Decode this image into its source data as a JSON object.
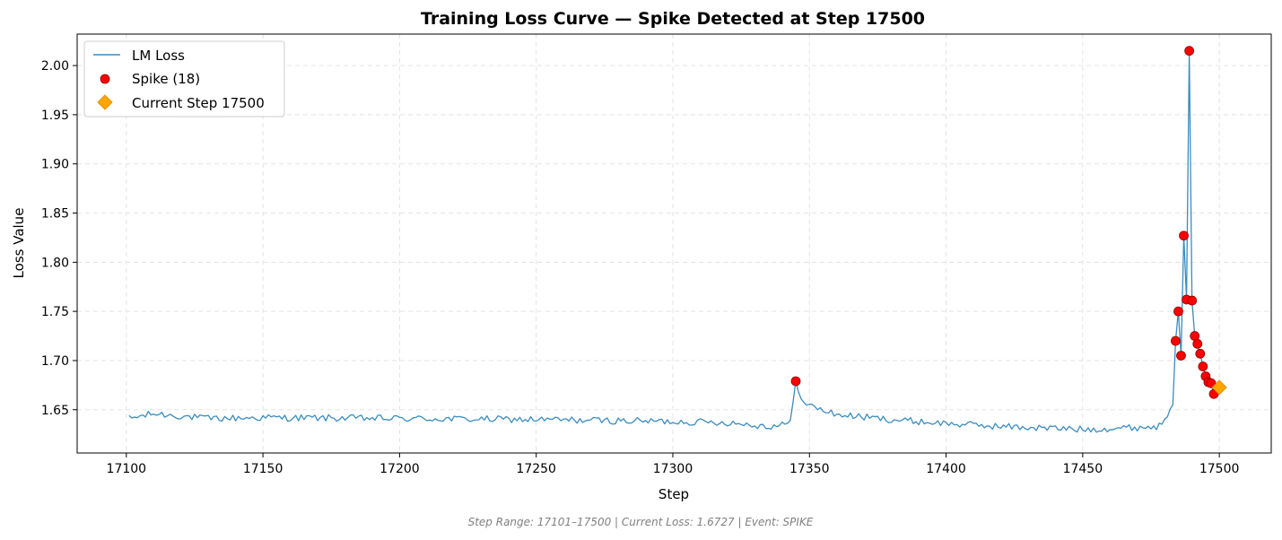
{
  "chart_data": {
    "type": "line",
    "title": "Training Loss Curve — Spike Detected at Step 17500",
    "xlabel": "Step",
    "ylabel": "Loss Value",
    "xlim": [
      17082,
      17519
    ],
    "ylim": [
      1.606,
      2.032
    ],
    "x_ticks": [
      17100,
      17150,
      17200,
      17250,
      17300,
      17350,
      17400,
      17450,
      17500
    ],
    "y_ticks": [
      1.65,
      1.7,
      1.75,
      1.8,
      1.85,
      1.9,
      1.95,
      2.0
    ],
    "x_tick_labels": [
      "17100",
      "17150",
      "17200",
      "17250",
      "17300",
      "17350",
      "17400",
      "17450",
      "17500"
    ],
    "y_tick_labels": [
      "1.65",
      "1.70",
      "1.75",
      "1.80",
      "1.85",
      "1.90",
      "1.95",
      "2.00"
    ],
    "grid": true,
    "legend_position": "top-left",
    "series": [
      {
        "name": "LM Loss",
        "color": "#3a8cc0",
        "anchors": [
          [
            17101,
            1.641
          ],
          [
            17110,
            1.646
          ],
          [
            17130,
            1.641
          ],
          [
            17150,
            1.642
          ],
          [
            17200,
            1.641
          ],
          [
            17250,
            1.64
          ],
          [
            17300,
            1.638
          ],
          [
            17320,
            1.637
          ],
          [
            17335,
            1.633
          ],
          [
            17343,
            1.636
          ],
          [
            17345,
            1.679
          ],
          [
            17348,
            1.656
          ],
          [
            17360,
            1.645
          ],
          [
            17380,
            1.64
          ],
          [
            17400,
            1.636
          ],
          [
            17420,
            1.633
          ],
          [
            17450,
            1.63
          ],
          [
            17470,
            1.632
          ],
          [
            17478,
            1.633
          ],
          [
            17483,
            1.655
          ],
          [
            17484,
            1.72
          ]
        ],
        "noise": 0.0035
      },
      {
        "name": "Spike (18)",
        "color": "#ff0000",
        "points": [
          [
            17345,
            1.679
          ],
          [
            17484,
            1.72
          ],
          [
            17485,
            1.75
          ],
          [
            17486,
            1.705
          ],
          [
            17487,
            1.827
          ],
          [
            17488,
            1.762
          ],
          [
            17489,
            2.015
          ],
          [
            17490,
            1.761
          ],
          [
            17491,
            1.725
          ],
          [
            17492,
            1.717
          ],
          [
            17493,
            1.707
          ],
          [
            17494,
            1.694
          ],
          [
            17495,
            1.684
          ],
          [
            17496,
            1.678
          ],
          [
            17497,
            1.677
          ],
          [
            17498,
            1.666
          ]
        ]
      },
      {
        "name": "Current Step 17500",
        "color": "#ffa500",
        "points": [
          [
            17500,
            1.6727
          ]
        ]
      }
    ]
  },
  "footer_text": "Step Range: 17101–17500 | Current Loss: 1.6727 | Event: SPIKE"
}
